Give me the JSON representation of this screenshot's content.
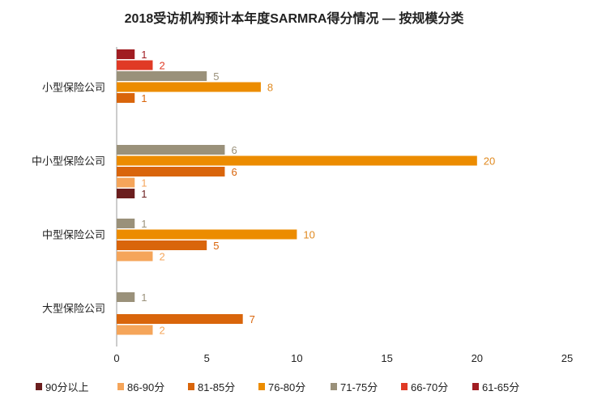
{
  "chart_data": {
    "type": "bar",
    "orientation": "horizontal",
    "title": "2018受访机构预计本年度SARMRA得分情况 — 按规模分类",
    "categories": [
      "小型保险公司",
      "中小型保险公司",
      "中型保险公司",
      "大型保险公司"
    ],
    "series": [
      {
        "name": "61-65分",
        "color": "#a11d22",
        "values": [
          1,
          null,
          null,
          null
        ]
      },
      {
        "name": "66-70分",
        "color": "#e03a25",
        "values": [
          2,
          null,
          null,
          null
        ]
      },
      {
        "name": "71-75分",
        "color": "#9a917a",
        "values": [
          5,
          6,
          1,
          1
        ]
      },
      {
        "name": "76-80分",
        "color": "#ec8c00",
        "values": [
          8,
          20,
          10,
          null
        ]
      },
      {
        "name": "81-85分",
        "color": "#d9650b",
        "values": [
          1,
          6,
          5,
          7
        ]
      },
      {
        "name": "86-90分",
        "color": "#f5a55a",
        "values": [
          null,
          1,
          2,
          2
        ]
      },
      {
        "name": "90分以上",
        "color": "#6b1e1e",
        "values": [
          null,
          1,
          null,
          null
        ]
      }
    ],
    "legend_order": [
      "90分以上",
      "86-90分",
      "81-85分",
      "76-80分",
      "71-75分",
      "66-70分",
      "61-65分"
    ],
    "xticks": [
      0,
      5,
      10,
      15,
      20,
      25
    ],
    "xlim": [
      0,
      25
    ],
    "xlabel": "",
    "ylabel": "",
    "grid": false,
    "legend_position": "bottom"
  }
}
